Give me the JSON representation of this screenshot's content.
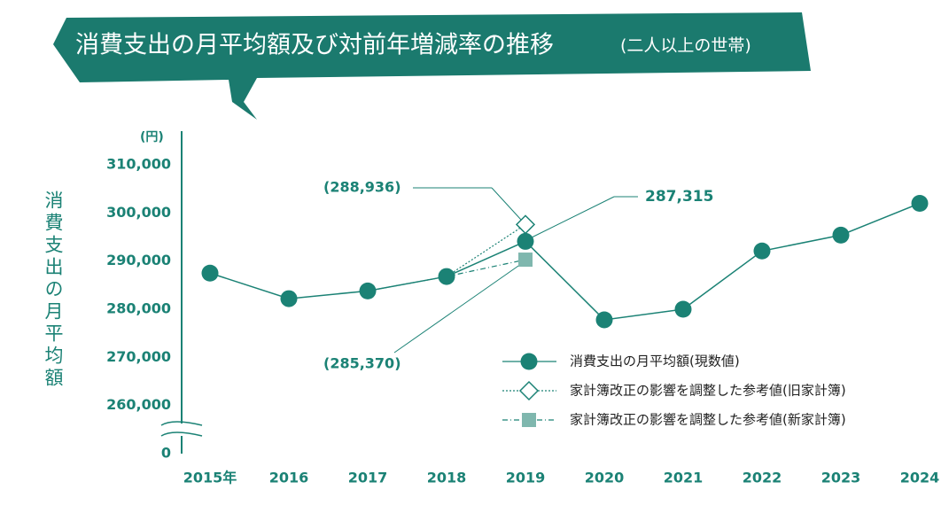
{
  "chart_data": {
    "type": "line",
    "title": "消費支出の月平均額及び対前年増減率の推移",
    "subtitle": "(二人以上の世帯)",
    "y_label": "消費支出の月平均額",
    "unit": "(円)",
    "categories": [
      "2015年",
      "2016",
      "2017",
      "2018",
      "2019",
      "2020",
      "2021",
      "2022",
      "2023",
      "2024"
    ],
    "series": [
      {
        "name": "消費支出の月平均額(現数値)",
        "color": "#1b8275",
        "marker": "circle",
        "line": "solid",
        "values": [
          287500,
          282200,
          283800,
          286800,
          294100,
          277800,
          280000,
          292100,
          295400,
          302000
        ]
      },
      {
        "name": "家計簿改正の影響を調整した参考値(旧家計簿)",
        "color": "#1b8275",
        "marker": "diamond",
        "line": "dotted",
        "values": [
          null,
          null,
          283800,
          286800,
          297600,
          null,
          null,
          null,
          null,
          null
        ]
      },
      {
        "name": "家計簿改正の影響を調整した参考値(新家計簿)",
        "color": "#7fb7ae",
        "marker": "square",
        "line": "dashdot",
        "values": [
          null,
          null,
          null,
          286800,
          290300,
          null,
          null,
          null,
          null,
          null
        ]
      }
    ],
    "ylim": [
      250000,
      317000
    ],
    "yticks": [
      0,
      {
        "value": 260000,
        "label": "260,000"
      },
      {
        "value": 270000,
        "label": "270,000"
      },
      {
        "value": 280000,
        "label": "280,000"
      },
      {
        "value": 290000,
        "label": "290,000"
      },
      {
        "value": 300000,
        "label": "300,000"
      },
      {
        "value": 310000,
        "label": "310,000"
      }
    ],
    "axis_break": true,
    "annotations": [
      "(288,936)",
      "287,315",
      "(285,370)"
    ]
  }
}
